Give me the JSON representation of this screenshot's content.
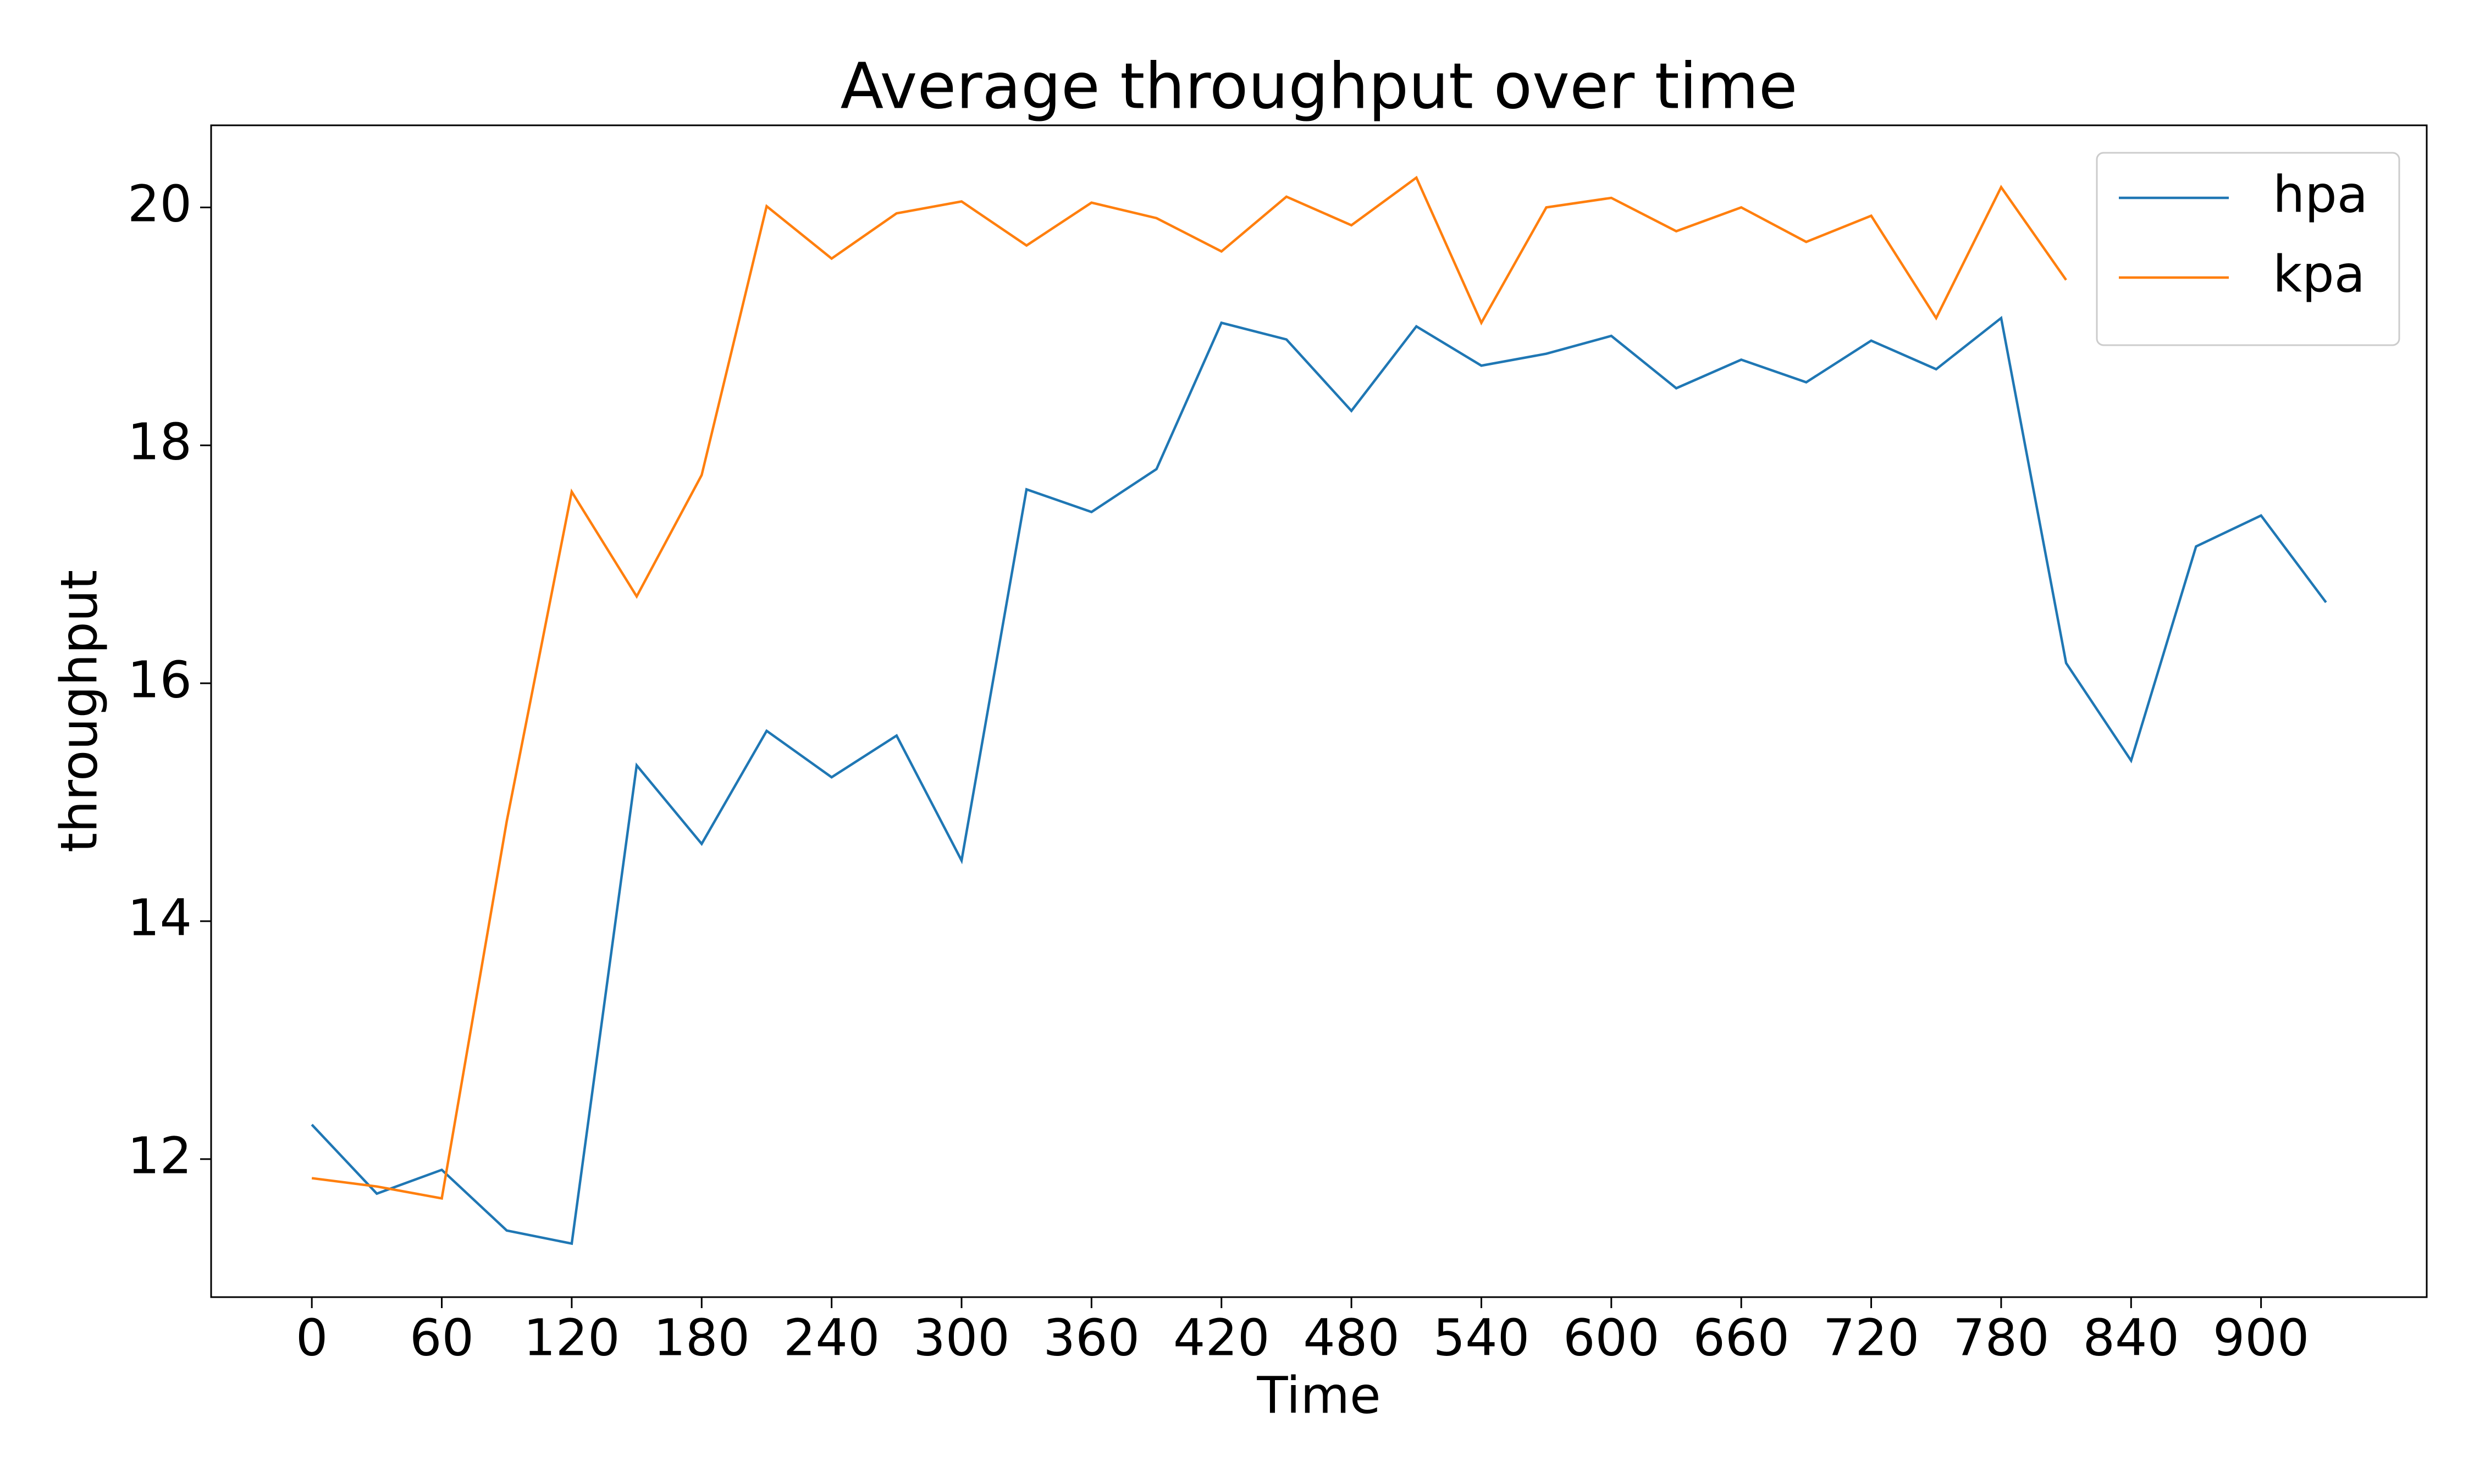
{
  "chart_data": {
    "type": "line",
    "title": "Average throughput over time",
    "x_label": "Time",
    "y_label": "throughput",
    "x": [
      0,
      30,
      60,
      90,
      120,
      150,
      180,
      210,
      240,
      270,
      300,
      330,
      360,
      390,
      420,
      450,
      480,
      510,
      540,
      570,
      600,
      630,
      660,
      690,
      720,
      750,
      780,
      810,
      840,
      870,
      900,
      930
    ],
    "series": [
      {
        "name": "hpa",
        "color": "#1f77b4",
        "values": [
          12.29,
          11.71,
          11.91,
          11.4,
          11.29,
          15.31,
          14.65,
          15.6,
          15.21,
          15.56,
          14.51,
          17.63,
          17.44,
          17.8,
          19.03,
          18.89,
          18.29,
          19.0,
          18.67,
          18.77,
          18.92,
          18.48,
          18.72,
          18.53,
          18.88,
          18.64,
          19.07,
          16.17,
          15.35,
          17.15,
          17.41,
          16.68
        ]
      },
      {
        "name": "kpa",
        "color": "#ff7f0e",
        "values": [
          11.84,
          11.77,
          11.67,
          14.84,
          17.61,
          16.73,
          17.75,
          20.01,
          19.57,
          19.95,
          20.05,
          19.68,
          20.04,
          19.91,
          19.63,
          20.09,
          19.85,
          20.25,
          19.03,
          20.0,
          20.08,
          19.8,
          20.0,
          19.71,
          19.93,
          19.07,
          20.17,
          19.39,
          null,
          null,
          null,
          null
        ]
      }
    ],
    "xlim": [
      -46.5,
      976.5
    ],
    "xticks": [
      0,
      60,
      120,
      180,
      240,
      300,
      360,
      420,
      480,
      540,
      600,
      660,
      720,
      780,
      840,
      900
    ],
    "ylim": [
      10.84,
      20.69
    ],
    "yticks": [
      12,
      14,
      16,
      18,
      20
    ],
    "grid": false,
    "legend": "upper right"
  }
}
